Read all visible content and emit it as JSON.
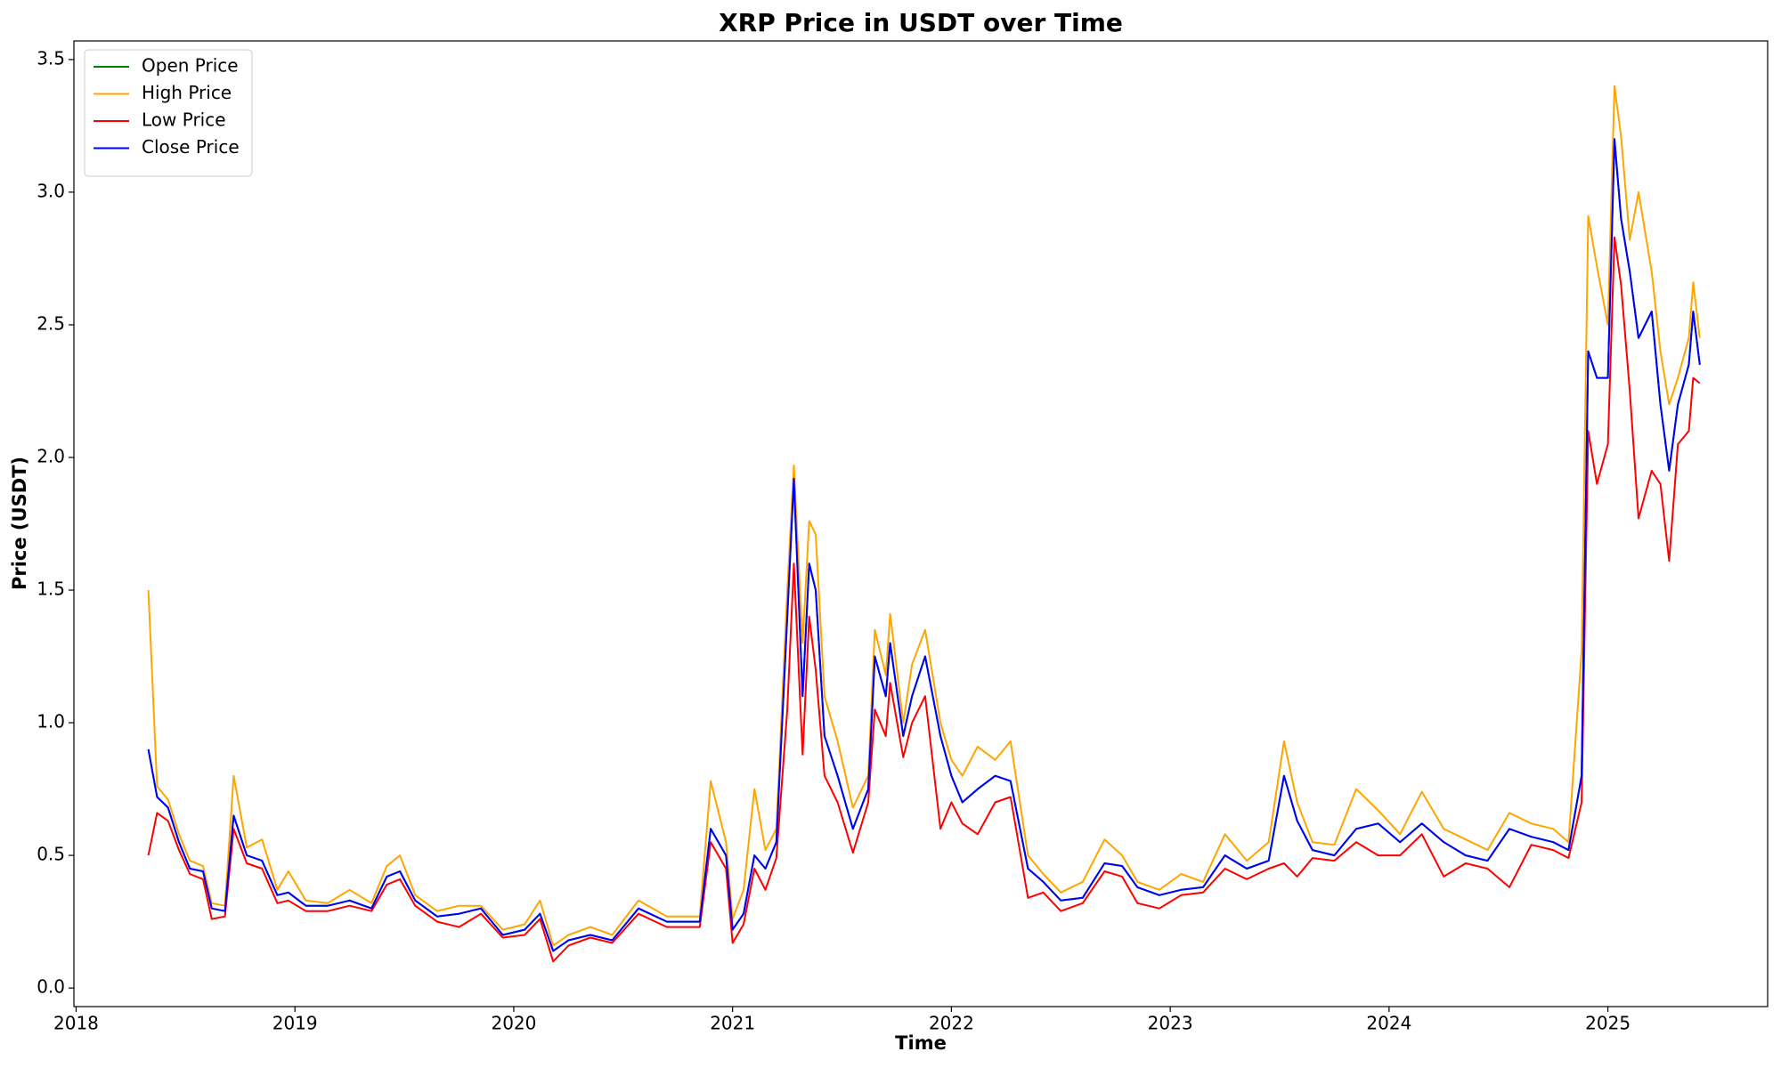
{
  "chart_data": {
    "type": "line",
    "title": "XRP Price in USDT over Time",
    "x_label": "Time",
    "y_label": "Price (USDT)",
    "x": [
      2018.33,
      2018.37,
      2018.42,
      2018.47,
      2018.52,
      2018.58,
      2018.62,
      2018.68,
      2018.72,
      2018.78,
      2018.85,
      2018.92,
      2018.97,
      2019.05,
      2019.15,
      2019.25,
      2019.35,
      2019.42,
      2019.48,
      2019.55,
      2019.65,
      2019.75,
      2019.85,
      2019.95,
      2020.05,
      2020.12,
      2020.18,
      2020.25,
      2020.35,
      2020.45,
      2020.57,
      2020.7,
      2020.85,
      2020.9,
      2020.97,
      2021.0,
      2021.05,
      2021.1,
      2021.15,
      2021.2,
      2021.25,
      2021.28,
      2021.32,
      2021.35,
      2021.38,
      2021.42,
      2021.48,
      2021.55,
      2021.62,
      2021.65,
      2021.7,
      2021.72,
      2021.78,
      2021.82,
      2021.88,
      2021.95,
      2022.0,
      2022.05,
      2022.12,
      2022.2,
      2022.27,
      2022.35,
      2022.42,
      2022.5,
      2022.6,
      2022.7,
      2022.78,
      2022.85,
      2022.95,
      2023.05,
      2023.15,
      2023.25,
      2023.35,
      2023.45,
      2023.52,
      2023.58,
      2023.65,
      2023.75,
      2023.85,
      2023.95,
      2024.05,
      2024.15,
      2024.25,
      2024.35,
      2024.45,
      2024.55,
      2024.65,
      2024.75,
      2024.82,
      2024.88,
      2024.91,
      2024.95,
      2025.0,
      2025.03,
      2025.06,
      2025.1,
      2025.14,
      2025.2,
      2025.24,
      2025.28,
      2025.32,
      2025.37,
      2025.39,
      2025.42
    ],
    "series": [
      {
        "name": "Open Price",
        "color": "green",
        "values": [
          0.9,
          0.72,
          0.68,
          0.55,
          0.45,
          0.44,
          0.3,
          0.29,
          0.65,
          0.5,
          0.48,
          0.35,
          0.36,
          0.31,
          0.31,
          0.33,
          0.3,
          0.42,
          0.44,
          0.33,
          0.27,
          0.28,
          0.3,
          0.2,
          0.22,
          0.28,
          0.14,
          0.18,
          0.2,
          0.18,
          0.3,
          0.25,
          0.25,
          0.6,
          0.5,
          0.22,
          0.28,
          0.5,
          0.45,
          0.55,
          1.4,
          1.92,
          1.1,
          1.6,
          1.5,
          0.95,
          0.8,
          0.6,
          0.75,
          1.25,
          1.1,
          1.3,
          0.95,
          1.1,
          1.25,
          0.95,
          0.8,
          0.7,
          0.75,
          0.8,
          0.78,
          0.45,
          0.4,
          0.33,
          0.34,
          0.47,
          0.46,
          0.38,
          0.35,
          0.37,
          0.38,
          0.5,
          0.45,
          0.48,
          0.8,
          0.63,
          0.52,
          0.5,
          0.6,
          0.62,
          0.55,
          0.62,
          0.55,
          0.5,
          0.48,
          0.6,
          0.57,
          0.55,
          0.52,
          0.8,
          2.4,
          2.3,
          2.3,
          3.2,
          2.9,
          2.7,
          2.45,
          2.55,
          2.2,
          1.95,
          2.2,
          2.35,
          2.55,
          2.35
        ]
      },
      {
        "name": "High Price",
        "color": "orange",
        "values": [
          1.5,
          0.76,
          0.71,
          0.58,
          0.48,
          0.46,
          0.32,
          0.31,
          0.8,
          0.53,
          0.56,
          0.37,
          0.44,
          0.33,
          0.32,
          0.37,
          0.32,
          0.46,
          0.5,
          0.35,
          0.29,
          0.31,
          0.31,
          0.22,
          0.24,
          0.33,
          0.16,
          0.2,
          0.23,
          0.2,
          0.33,
          0.27,
          0.27,
          0.78,
          0.55,
          0.26,
          0.37,
          0.75,
          0.52,
          0.6,
          1.5,
          1.97,
          1.3,
          1.76,
          1.71,
          1.1,
          0.93,
          0.68,
          0.8,
          1.35,
          1.18,
          1.41,
          1.0,
          1.22,
          1.35,
          1.0,
          0.86,
          0.8,
          0.91,
          0.86,
          0.93,
          0.5,
          0.43,
          0.36,
          0.4,
          0.56,
          0.5,
          0.4,
          0.37,
          0.43,
          0.4,
          0.58,
          0.48,
          0.55,
          0.93,
          0.7,
          0.55,
          0.54,
          0.75,
          0.67,
          0.58,
          0.74,
          0.6,
          0.56,
          0.52,
          0.66,
          0.62,
          0.6,
          0.55,
          1.27,
          2.91,
          2.72,
          2.5,
          3.4,
          3.21,
          2.82,
          3.0,
          2.7,
          2.4,
          2.2,
          2.3,
          2.45,
          2.66,
          2.45
        ]
      },
      {
        "name": "Low Price",
        "color": "red",
        "values": [
          0.5,
          0.66,
          0.63,
          0.52,
          0.43,
          0.41,
          0.26,
          0.27,
          0.6,
          0.47,
          0.45,
          0.32,
          0.33,
          0.29,
          0.29,
          0.31,
          0.29,
          0.39,
          0.41,
          0.31,
          0.25,
          0.23,
          0.28,
          0.19,
          0.2,
          0.26,
          0.1,
          0.16,
          0.19,
          0.17,
          0.28,
          0.23,
          0.23,
          0.55,
          0.45,
          0.17,
          0.24,
          0.45,
          0.37,
          0.49,
          1.05,
          1.6,
          0.88,
          1.4,
          1.2,
          0.8,
          0.7,
          0.51,
          0.7,
          1.05,
          0.95,
          1.15,
          0.87,
          1.0,
          1.1,
          0.6,
          0.7,
          0.62,
          0.58,
          0.7,
          0.72,
          0.34,
          0.36,
          0.29,
          0.32,
          0.44,
          0.42,
          0.32,
          0.3,
          0.35,
          0.36,
          0.45,
          0.41,
          0.45,
          0.47,
          0.42,
          0.49,
          0.48,
          0.55,
          0.5,
          0.5,
          0.58,
          0.42,
          0.47,
          0.45,
          0.38,
          0.54,
          0.52,
          0.49,
          0.7,
          2.1,
          1.9,
          2.05,
          2.83,
          2.65,
          2.25,
          1.77,
          1.95,
          1.9,
          1.61,
          2.05,
          2.1,
          2.3,
          2.28
        ]
      },
      {
        "name": "Close Price",
        "color": "blue",
        "values": [
          0.9,
          0.72,
          0.68,
          0.55,
          0.45,
          0.44,
          0.3,
          0.29,
          0.65,
          0.5,
          0.48,
          0.35,
          0.36,
          0.31,
          0.31,
          0.33,
          0.3,
          0.42,
          0.44,
          0.33,
          0.27,
          0.28,
          0.3,
          0.2,
          0.22,
          0.28,
          0.14,
          0.18,
          0.2,
          0.18,
          0.3,
          0.25,
          0.25,
          0.6,
          0.5,
          0.22,
          0.28,
          0.5,
          0.45,
          0.55,
          1.4,
          1.92,
          1.1,
          1.6,
          1.5,
          0.95,
          0.8,
          0.6,
          0.75,
          1.25,
          1.1,
          1.3,
          0.95,
          1.1,
          1.25,
          0.95,
          0.8,
          0.7,
          0.75,
          0.8,
          0.78,
          0.45,
          0.4,
          0.33,
          0.34,
          0.47,
          0.46,
          0.38,
          0.35,
          0.37,
          0.38,
          0.5,
          0.45,
          0.48,
          0.8,
          0.63,
          0.52,
          0.5,
          0.6,
          0.62,
          0.55,
          0.62,
          0.55,
          0.5,
          0.48,
          0.6,
          0.57,
          0.55,
          0.52,
          0.8,
          2.4,
          2.3,
          2.3,
          3.2,
          2.9,
          2.7,
          2.45,
          2.55,
          2.2,
          1.95,
          2.2,
          2.35,
          2.55,
          2.35
        ]
      }
    ],
    "xlim": [
      2017.99,
      2025.73
    ],
    "xticks": [
      2018,
      2019,
      2020,
      2021,
      2022,
      2023,
      2024,
      2025
    ],
    "ylim": [
      -0.07,
      3.57
    ],
    "yticks": [
      {
        "value": 0,
        "label": "0.0"
      },
      {
        "value": 0.5,
        "label": "0.5"
      },
      {
        "value": 1,
        "label": "1.0"
      },
      {
        "value": 1.5,
        "label": "1.5"
      },
      {
        "value": 2,
        "label": "2.0"
      },
      {
        "value": 2.5,
        "label": "2.5"
      },
      {
        "value": 3,
        "label": "3.0"
      },
      {
        "value": 3.5,
        "label": "3.5"
      }
    ],
    "legend": "upper left"
  }
}
